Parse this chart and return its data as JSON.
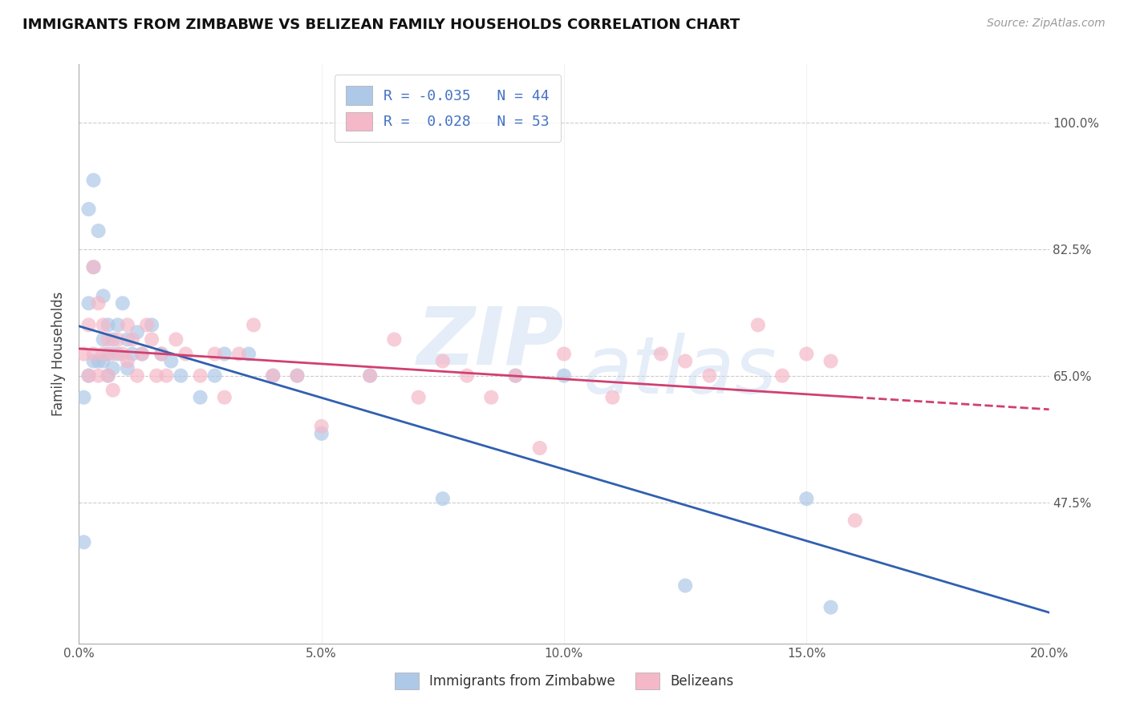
{
  "title": "IMMIGRANTS FROM ZIMBABWE VS BELIZEAN FAMILY HOUSEHOLDS CORRELATION CHART",
  "source": "Source: ZipAtlas.com",
  "ylabel": "Family Households",
  "xlabel_blue": "Immigrants from Zimbabwe",
  "xlabel_pink": "Belizeans",
  "r_blue": -0.035,
  "n_blue": 44,
  "r_pink": 0.028,
  "n_pink": 53,
  "xlim": [
    0.0,
    0.2
  ],
  "ylim_low": 0.28,
  "ylim_high": 1.08,
  "yticks": [
    0.475,
    0.65,
    0.825,
    1.0
  ],
  "ytick_labels": [
    "47.5%",
    "65.0%",
    "82.5%",
    "100.0%"
  ],
  "xtick_labels": [
    "0.0%",
    "5.0%",
    "10.0%",
    "15.0%",
    "20.0%"
  ],
  "xticks": [
    0.0,
    0.05,
    0.1,
    0.15,
    0.2
  ],
  "blue_color": "#aec8e8",
  "pink_color": "#f4b8c8",
  "blue_line_color": "#3060b0",
  "pink_line_color": "#d04070",
  "background_color": "#ffffff",
  "blue_scatter_x": [
    0.001,
    0.001,
    0.002,
    0.002,
    0.002,
    0.003,
    0.003,
    0.003,
    0.004,
    0.004,
    0.005,
    0.005,
    0.005,
    0.006,
    0.006,
    0.006,
    0.007,
    0.007,
    0.008,
    0.008,
    0.009,
    0.01,
    0.01,
    0.011,
    0.012,
    0.013,
    0.015,
    0.017,
    0.019,
    0.021,
    0.025,
    0.028,
    0.03,
    0.035,
    0.04,
    0.045,
    0.05,
    0.06,
    0.075,
    0.09,
    0.1,
    0.125,
    0.15,
    0.155
  ],
  "blue_scatter_y": [
    0.42,
    0.62,
    0.88,
    0.75,
    0.65,
    0.92,
    0.8,
    0.67,
    0.85,
    0.67,
    0.76,
    0.7,
    0.67,
    0.72,
    0.68,
    0.65,
    0.7,
    0.66,
    0.72,
    0.68,
    0.75,
    0.7,
    0.66,
    0.68,
    0.71,
    0.68,
    0.72,
    0.68,
    0.67,
    0.65,
    0.62,
    0.65,
    0.68,
    0.68,
    0.65,
    0.65,
    0.57,
    0.65,
    0.48,
    0.65,
    0.65,
    0.36,
    0.48,
    0.33
  ],
  "pink_scatter_x": [
    0.001,
    0.002,
    0.002,
    0.003,
    0.003,
    0.004,
    0.004,
    0.005,
    0.005,
    0.006,
    0.006,
    0.007,
    0.007,
    0.008,
    0.009,
    0.01,
    0.01,
    0.011,
    0.012,
    0.013,
    0.014,
    0.015,
    0.016,
    0.017,
    0.018,
    0.02,
    0.022,
    0.025,
    0.028,
    0.03,
    0.033,
    0.036,
    0.04,
    0.045,
    0.05,
    0.06,
    0.065,
    0.07,
    0.075,
    0.08,
    0.085,
    0.09,
    0.095,
    0.1,
    0.11,
    0.12,
    0.125,
    0.13,
    0.14,
    0.145,
    0.15,
    0.155,
    0.16
  ],
  "pink_scatter_y": [
    0.68,
    0.72,
    0.65,
    0.8,
    0.68,
    0.75,
    0.65,
    0.72,
    0.68,
    0.7,
    0.65,
    0.68,
    0.63,
    0.7,
    0.68,
    0.72,
    0.67,
    0.7,
    0.65,
    0.68,
    0.72,
    0.7,
    0.65,
    0.68,
    0.65,
    0.7,
    0.68,
    0.65,
    0.68,
    0.62,
    0.68,
    0.72,
    0.65,
    0.65,
    0.58,
    0.65,
    0.7,
    0.62,
    0.67,
    0.65,
    0.62,
    0.65,
    0.55,
    0.68,
    0.62,
    0.68,
    0.67,
    0.65,
    0.72,
    0.65,
    0.68,
    0.67,
    0.45
  ],
  "watermark_line1": "ZIP",
  "watermark_line2": "atlas",
  "legend_text_color": "#4472c4",
  "title_fontsize": 13,
  "source_fontsize": 10,
  "axis_label_fontsize": 11,
  "scatter_size": 170
}
